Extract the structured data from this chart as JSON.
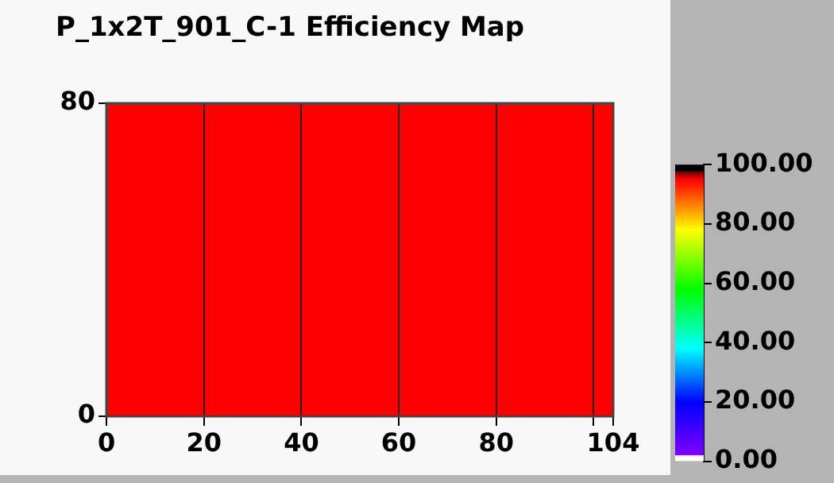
{
  "chart_data": {
    "type": "heatmap",
    "title": "P_1x2T_901_C-1 Efficiency Map",
    "xlim": [
      0,
      104
    ],
    "ylim": [
      0,
      80
    ],
    "xticks": [
      0,
      20,
      40,
      60,
      80,
      {
        "value": 100,
        "label": null
      },
      104
    ],
    "yticks": [
      0,
      80
    ],
    "grid": "x",
    "clim": [
      0,
      100
    ],
    "cticks": [
      {
        "value": 0,
        "label": "0.00"
      },
      {
        "value": 20,
        "label": "20.00"
      },
      {
        "value": 40,
        "label": "40.00"
      },
      {
        "value": 60,
        "label": "60.00"
      },
      {
        "value": 80,
        "label": "80.00"
      },
      {
        "value": 100,
        "label": "100.00"
      }
    ],
    "cells": [
      [
        95,
        95,
        95,
        95,
        95,
        95,
        95,
        95,
        95,
        95,
        95,
        95,
        95
      ],
      [
        95,
        95,
        95,
        95,
        95,
        95,
        95,
        95,
        95,
        95,
        95,
        95,
        95
      ],
      [
        95,
        95,
        95,
        95,
        95,
        95,
        95,
        95,
        95,
        95,
        95,
        95,
        95
      ],
      [
        95,
        95,
        95,
        95,
        95,
        95,
        95,
        95,
        95,
        95,
        95,
        95,
        95
      ]
    ]
  }
}
